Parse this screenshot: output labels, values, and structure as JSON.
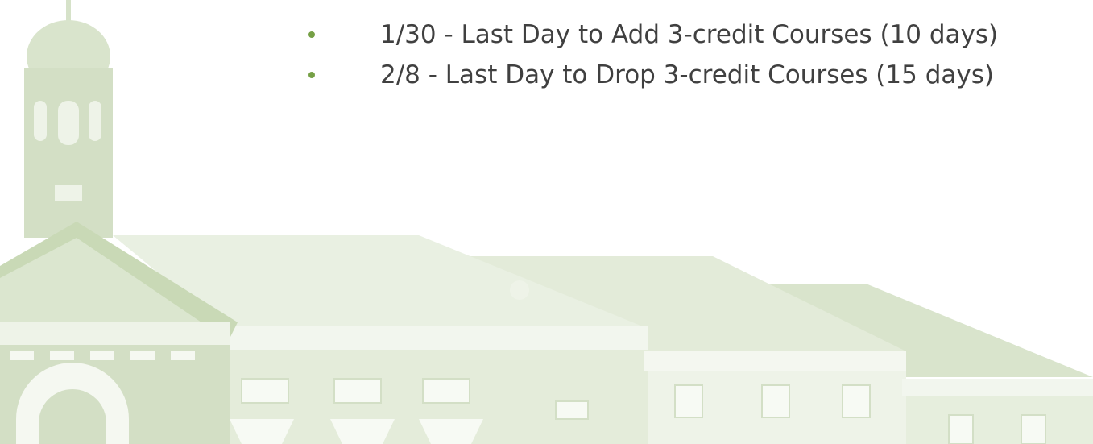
{
  "slide": {
    "bullets": [
      "1/30 - Last Day to Add 3-credit Courses (10 days)",
      "2/8 - Last Day to Drop 3-credit Courses (15 days)"
    ]
  }
}
